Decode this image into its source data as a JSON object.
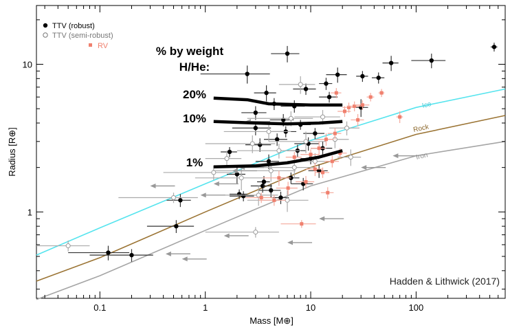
{
  "chart_data": {
    "type": "scatter",
    "xlabel": "Mass [M⊕]",
    "ylabel": "Radius [R⊕]",
    "x_scale": "log",
    "y_scale": "log",
    "xlim": [
      0.025,
      700
    ],
    "ylim": [
      0.26,
      25
    ],
    "xticks": [
      {
        "value": 0.1,
        "label": "0.1"
      },
      {
        "value": 1,
        "label": "1"
      },
      {
        "value": 10,
        "label": "10"
      },
      {
        "value": 100,
        "label": "100"
      }
    ],
    "yticks": [
      {
        "value": 1,
        "label": "1"
      },
      {
        "value": 10,
        "label": "10"
      }
    ],
    "grid": false,
    "legend_position": "top-left",
    "legend": [
      {
        "label": "TTV (robust)",
        "marker": "filled-circle",
        "color": "#000000"
      },
      {
        "label": "TTV (semi-robust)",
        "marker": "open-circle",
        "color": "#999999"
      },
      {
        "label": "RV",
        "marker": "square",
        "color": "#f0806e"
      }
    ],
    "annotations": {
      "header_line1": "% by weight",
      "header_line2": "H/He:",
      "credit": "Hadden & Lithwick (2017)"
    },
    "composition_curves": [
      {
        "label": "Ice",
        "color": "#55e4ee",
        "points": [
          [
            0.025,
            0.51
          ],
          [
            0.1,
            0.78
          ],
          [
            1,
            1.55
          ],
          [
            10,
            3.05
          ],
          [
            100,
            5.1
          ],
          [
            700,
            6.8
          ]
        ]
      },
      {
        "label": "Rock",
        "color": "#9b7434",
        "points": [
          [
            0.025,
            0.34
          ],
          [
            0.1,
            0.49
          ],
          [
            1,
            1.0
          ],
          [
            10,
            2.0
          ],
          [
            100,
            3.35
          ],
          [
            700,
            4.5
          ]
        ]
      },
      {
        "label": "Iron",
        "color": "#a5a5a5",
        "points": [
          [
            0.025,
            0.255
          ],
          [
            0.1,
            0.37
          ],
          [
            1,
            0.75
          ],
          [
            10,
            1.5
          ],
          [
            100,
            2.4
          ],
          [
            700,
            3.0
          ]
        ]
      }
    ],
    "hhe_tracks": [
      {
        "label": "20%",
        "points": [
          [
            1.2,
            5.9
          ],
          [
            2.5,
            5.75
          ],
          [
            4,
            5.4
          ],
          [
            10,
            5.3
          ],
          [
            20,
            5.3
          ]
        ]
      },
      {
        "label": "10%",
        "points": [
          [
            1.2,
            4.1
          ],
          [
            3,
            4.0
          ],
          [
            6,
            3.95
          ],
          [
            12,
            4.0
          ],
          [
            20,
            4.1
          ]
        ]
      },
      {
        "label": "1%",
        "points": [
          [
            1.2,
            2.02
          ],
          [
            3,
            2.05
          ],
          [
            6,
            2.15
          ],
          [
            12,
            2.35
          ],
          [
            20,
            2.6
          ]
        ]
      }
    ],
    "series": [
      {
        "name": "TTV (robust)",
        "marker": "filled-circle",
        "color": "#000000",
        "points": [
          [
            0.12,
            0.53,
            0.07,
            0.06
          ],
          [
            0.2,
            0.51,
            0.12,
            0.05
          ],
          [
            0.53,
            0.8,
            0.25,
            0.08
          ],
          [
            0.58,
            1.2,
            0.15,
            0.12
          ],
          [
            1.7,
            2.55,
            0.3,
            0.2
          ],
          [
            2.0,
            1.8,
            0.4,
            0.25
          ],
          [
            2.1,
            1.32,
            0.4,
            0.1
          ],
          [
            2.3,
            1.28,
            0.6,
            0.1
          ],
          [
            2.5,
            8.6,
            1.6,
            1.2
          ],
          [
            3.0,
            4.7,
            0.8,
            0.5
          ],
          [
            3.0,
            3.7,
            1.2,
            0.4
          ],
          [
            3.3,
            2.85,
            0.9,
            0.3
          ],
          [
            3.5,
            1.5,
            0.8,
            0.15
          ],
          [
            3.6,
            1.6,
            0.5,
            0.15
          ],
          [
            3.8,
            6.4,
            0.9,
            0.8
          ],
          [
            4.0,
            2.2,
            1.0,
            0.25
          ],
          [
            4.2,
            1.4,
            1.0,
            0.15
          ],
          [
            4.5,
            5.4,
            1.0,
            0.5
          ],
          [
            4.8,
            3.1,
            1.2,
            0.3
          ],
          [
            5.2,
            1.25,
            1.0,
            0.12
          ],
          [
            5.5,
            4.2,
            1.4,
            0.4
          ],
          [
            5.8,
            3.5,
            1.5,
            0.3
          ],
          [
            6.0,
            11.8,
            1.8,
            1.5
          ],
          [
            6.5,
            1.7,
            1.3,
            0.15
          ],
          [
            7.0,
            5.2,
            1.8,
            0.5
          ],
          [
            7.5,
            2.6,
            1.5,
            0.25
          ],
          [
            8.0,
            3.9,
            2.0,
            0.3
          ],
          [
            8.5,
            1.55,
            2.0,
            0.15
          ],
          [
            9.0,
            6.8,
            2.2,
            0.6
          ],
          [
            9.5,
            2.9,
            2.5,
            0.3
          ],
          [
            10.0,
            2.3,
            2.0,
            0.2
          ],
          [
            11.0,
            3.4,
            2.5,
            0.3
          ],
          [
            12.0,
            1.9,
            2.5,
            0.2
          ],
          [
            13.0,
            2.7,
            3.0,
            0.3
          ],
          [
            14.0,
            7.4,
            2.0,
            0.7
          ],
          [
            15.0,
            6.0,
            3.0,
            0.5
          ],
          [
            18.0,
            8.5,
            4.0,
            1.0
          ],
          [
            30.0,
            5.1,
            5.0,
            0.7
          ],
          [
            31.0,
            8.3,
            4.0,
            0.7
          ],
          [
            44.0,
            8.1,
            6.0,
            0.7
          ],
          [
            58.0,
            10.2,
            10.0,
            1.2
          ],
          [
            140.0,
            10.6,
            50.0,
            1.2
          ],
          [
            550.0,
            13.1,
            40.0,
            0.9
          ]
        ]
      },
      {
        "name": "TTV (semi-robust)",
        "marker": "open-circle",
        "color": "#999999",
        "points": [
          [
            0.05,
            0.59,
            0.03,
            0.05
          ],
          [
            0.5,
            1.25,
            0.35,
            0.1
          ],
          [
            1.2,
            1.85,
            0.8,
            0.2
          ],
          [
            1.6,
            2.3,
            0.6,
            0.3
          ],
          [
            2.2,
            1.7,
            1.4,
            0.3
          ],
          [
            2.8,
            2.9,
            1.8,
            0.4
          ],
          [
            3.2,
            1.3,
            1.7,
            0.2
          ],
          [
            4.0,
            3.5,
            2.5,
            0.5
          ],
          [
            4.2,
            1.9,
            3.0,
            0.3
          ],
          [
            5.0,
            2.6,
            3.0,
            0.3
          ],
          [
            6.0,
            1.2,
            3.5,
            0.2
          ],
          [
            6.5,
            4.3,
            4.0,
            0.5
          ],
          [
            7.0,
            2.0,
            4.0,
            0.3
          ],
          [
            8.0,
            7.3,
            3.0,
            1.0
          ],
          [
            9.0,
            3.0,
            5.0,
            0.5
          ],
          [
            11.0,
            2.2,
            5.0,
            0.3
          ],
          [
            13.0,
            4.4,
            6.0,
            0.5
          ],
          [
            17.0,
            3.1,
            6.0,
            0.4
          ],
          [
            22.0,
            3.7,
            7.0,
            0.4
          ],
          [
            24.0,
            2.35,
            6.0,
            0.3
          ],
          [
            3.0,
            0.73,
            2.0,
            0.06
          ]
        ]
      },
      {
        "name": "RV",
        "marker": "square",
        "color": "#f0806e",
        "points": [
          [
            3.4,
            1.25,
            1.0,
            0.1
          ],
          [
            4.5,
            1.2,
            1.3,
            0.1
          ],
          [
            5.0,
            1.7,
            1.5,
            0.2
          ],
          [
            6.1,
            1.45,
            1.4,
            0.15
          ],
          [
            7.0,
            2.35,
            1.2,
            0.2
          ],
          [
            8.2,
            0.83,
            3.0,
            0.05
          ],
          [
            9.0,
            1.6,
            1.8,
            0.15
          ],
          [
            10.0,
            2.45,
            2.0,
            0.2
          ],
          [
            11.0,
            1.95,
            2.0,
            0.2
          ],
          [
            12.0,
            2.7,
            2.0,
            0.3
          ],
          [
            13.0,
            1.85,
            2.0,
            0.15
          ],
          [
            14.0,
            3.1,
            2.5,
            0.3
          ],
          [
            16.0,
            2.2,
            2.5,
            0.2
          ],
          [
            17.0,
            3.4,
            2.5,
            0.3
          ],
          [
            19.0,
            2.5,
            3.0,
            0.2
          ],
          [
            21.0,
            4.8,
            3.0,
            0.4
          ],
          [
            23.0,
            5.1,
            3.0,
            0.4
          ],
          [
            26.0,
            5.2,
            4.0,
            0.4
          ],
          [
            28.0,
            4.2,
            4.0,
            0.4
          ],
          [
            31.0,
            5.3,
            5.0,
            0.4
          ],
          [
            37.0,
            6.0,
            3.0,
            0.4
          ],
          [
            17.5,
            6.4,
            2.0,
            0.5
          ],
          [
            47.0,
            6.4,
            3.0,
            0.4
          ],
          [
            70.0,
            4.4,
            5.0,
            0.4
          ],
          [
            14.5,
            1.35,
            2.0,
            0.12
          ]
        ]
      },
      {
        "name": "upper limits",
        "marker": "left-arrow",
        "color": "#999999",
        "points": [
          [
            0.5,
            1.5
          ],
          [
            0.7,
            0.52
          ],
          [
            1.0,
            0.48
          ],
          [
            1.5,
            1.3
          ],
          [
            2.0,
            1.55
          ],
          [
            2.5,
            0.69
          ],
          [
            3.0,
            1.9
          ],
          [
            3.5,
            2.0
          ],
          [
            4.0,
            4.1
          ],
          [
            10.0,
            0.62
          ],
          [
            20.0,
            0.9
          ],
          [
            50.0,
            2.0
          ],
          [
            100.0,
            2.4
          ]
        ]
      }
    ]
  }
}
